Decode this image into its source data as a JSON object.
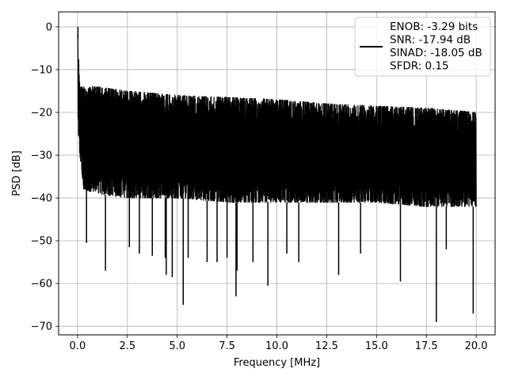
{
  "chart_data": {
    "type": "line",
    "title": "",
    "xlabel": "Frequency [MHz]",
    "ylabel": "PSD [dB]",
    "xlim": [
      -0.95,
      20.95
    ],
    "ylim": [
      -72.0,
      3.5
    ],
    "grid": true,
    "legend_position": "top-right",
    "x_ticks": [
      {
        "value": 0.0,
        "label": "0.0"
      },
      {
        "value": 2.5,
        "label": "2.5"
      },
      {
        "value": 5.0,
        "label": "5.0"
      },
      {
        "value": 7.5,
        "label": "7.5"
      },
      {
        "value": 10.0,
        "label": "10.0"
      },
      {
        "value": 12.5,
        "label": "12.5"
      },
      {
        "value": 15.0,
        "label": "15.0"
      },
      {
        "value": 17.5,
        "label": "17.5"
      },
      {
        "value": 20.0,
        "label": "20.0"
      }
    ],
    "y_ticks": [
      {
        "value": 0,
        "label": "0"
      },
      {
        "value": -10,
        "label": "−10"
      },
      {
        "value": -20,
        "label": "−20"
      },
      {
        "value": -30,
        "label": "−30"
      },
      {
        "value": -40,
        "label": "−40"
      },
      {
        "value": -50,
        "label": "−50"
      },
      {
        "value": -60,
        "label": "−60"
      },
      {
        "value": -70,
        "label": "−70"
      }
    ],
    "series": [
      {
        "color": "#000000",
        "legend_lines": [
          "ENOB: -3.29 bits",
          "SNR: -17.94 dB",
          "SINAD: -18.05 dB",
          "SFDR: 0.15"
        ],
        "x_range": [
          0.0,
          20.0
        ],
        "upper_envelope": [
          [
            0.0,
            0.0
          ],
          [
            0.05,
            -7
          ],
          [
            0.15,
            -14
          ],
          [
            1.0,
            -14
          ],
          [
            2.5,
            -15
          ],
          [
            5.0,
            -16
          ],
          [
            7.5,
            -16.5
          ],
          [
            10.0,
            -17
          ],
          [
            12.5,
            -18
          ],
          [
            15.0,
            -18.5
          ],
          [
            17.5,
            -19
          ],
          [
            20.0,
            -20
          ]
        ],
        "lower_envelope": [
          [
            0.0,
            -25
          ],
          [
            0.3,
            -38
          ],
          [
            1.0,
            -39
          ],
          [
            2.5,
            -40
          ],
          [
            5.0,
            -40
          ],
          [
            7.5,
            -41
          ],
          [
            10.0,
            -41
          ],
          [
            12.5,
            -41
          ],
          [
            15.0,
            -41
          ],
          [
            17.5,
            -42
          ],
          [
            20.0,
            -42
          ]
        ],
        "notable_points": [
          {
            "x": 0.02,
            "y": 0.0
          },
          {
            "x": 0.45,
            "y": -50.5
          },
          {
            "x": 1.4,
            "y": -57.0
          },
          {
            "x": 2.6,
            "y": -51.5
          },
          {
            "x": 3.1,
            "y": -53.0
          },
          {
            "x": 3.75,
            "y": -53.5
          },
          {
            "x": 4.4,
            "y": -54.0
          },
          {
            "x": 4.45,
            "y": -58.0
          },
          {
            "x": 4.75,
            "y": -58.5
          },
          {
            "x": 5.3,
            "y": -65.0
          },
          {
            "x": 5.55,
            "y": -54.0
          },
          {
            "x": 6.5,
            "y": -55.0
          },
          {
            "x": 7.0,
            "y": -55.0
          },
          {
            "x": 7.5,
            "y": -54.0
          },
          {
            "x": 7.95,
            "y": -63.0
          },
          {
            "x": 8.0,
            "y": -57.0
          },
          {
            "x": 8.8,
            "y": -55.0
          },
          {
            "x": 9.55,
            "y": -60.5
          },
          {
            "x": 10.5,
            "y": -53.0
          },
          {
            "x": 11.1,
            "y": -55.0
          },
          {
            "x": 13.1,
            "y": -58.0
          },
          {
            "x": 14.2,
            "y": -53.0
          },
          {
            "x": 16.2,
            "y": -59.5
          },
          {
            "x": 18.0,
            "y": -69.0
          },
          {
            "x": 18.5,
            "y": -52.0
          },
          {
            "x": 19.85,
            "y": -67.0
          }
        ]
      }
    ]
  }
}
